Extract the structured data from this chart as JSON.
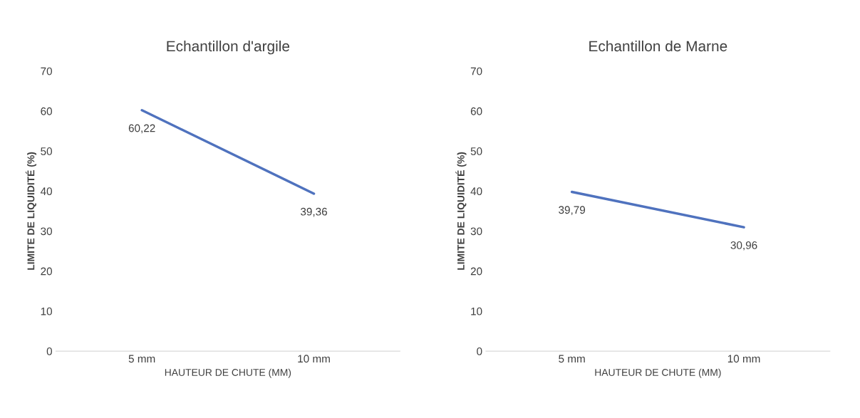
{
  "chart_data": [
    {
      "type": "line",
      "title": "Echantillon d'argile",
      "xlabel": "HAUTEUR DE CHUTE (MM)",
      "ylabel": "LIMITE DE LIQUIDITÉ (%)",
      "categories": [
        "5 mm",
        "10 mm"
      ],
      "series": [
        {
          "color": "#4f72be",
          "values": [
            60.22,
            39.36
          ],
          "value_labels": [
            "60,22",
            "39,36"
          ]
        }
      ],
      "ylim": [
        0,
        70
      ],
      "yticks": [
        0,
        10,
        20,
        30,
        40,
        50,
        60,
        70
      ],
      "grid": false,
      "marker": "none",
      "line_style": "solid"
    },
    {
      "type": "line",
      "title": "Echantillon de Marne",
      "xlabel": "HAUTEUR DE CHUTE (MM)",
      "ylabel": "LIMITE DE LIQUIDITÉ (%)",
      "categories": [
        "5 mm",
        "10 mm"
      ],
      "series": [
        {
          "color": "#4f72be",
          "values": [
            39.79,
            30.96
          ],
          "value_labels": [
            "39,79",
            "30,96"
          ]
        }
      ],
      "ylim": [
        0,
        70
      ],
      "yticks": [
        0,
        10,
        20,
        30,
        40,
        50,
        60,
        70
      ],
      "grid": false,
      "marker": "none",
      "line_style": "solid"
    }
  ]
}
